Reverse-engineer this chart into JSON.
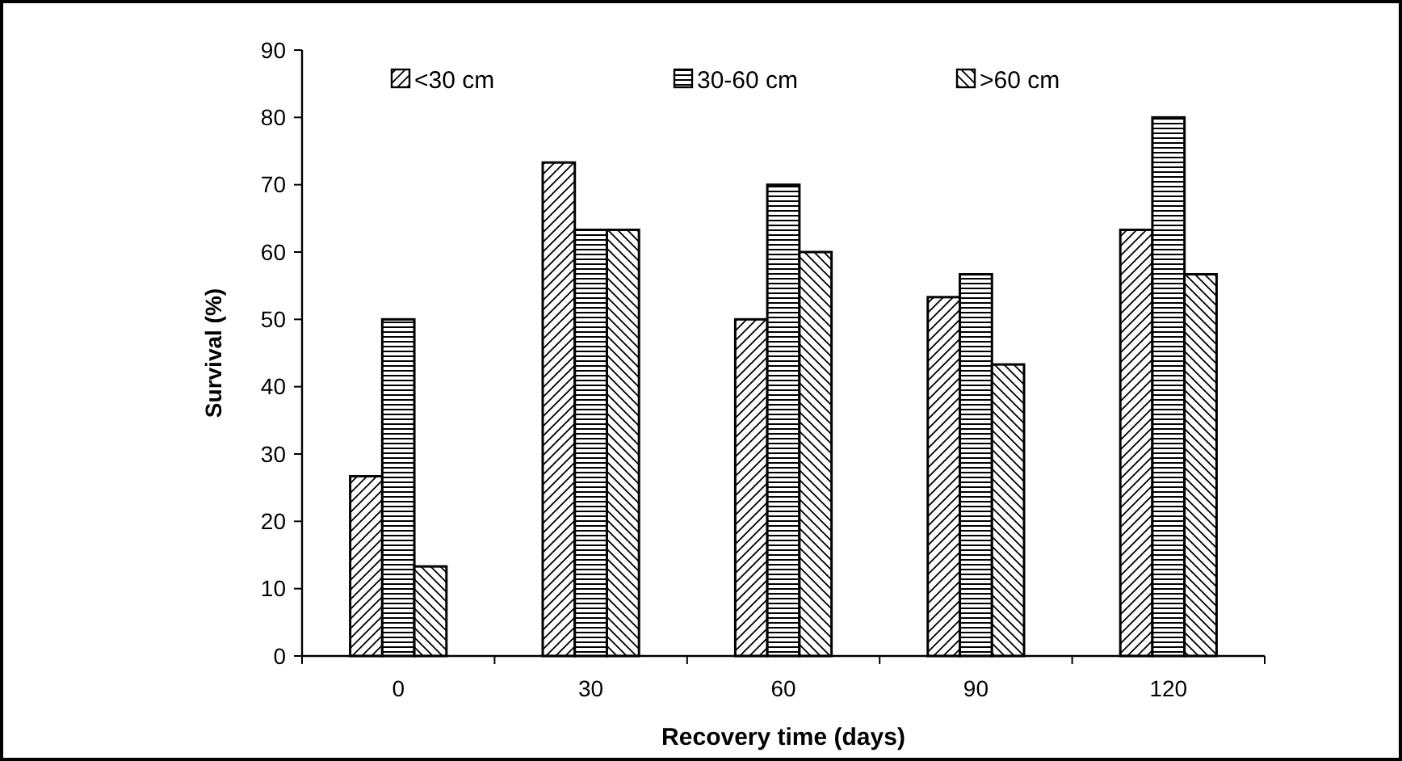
{
  "chart_data": {
    "type": "bar",
    "xlabel": "Recovery time (days)",
    "ylabel": "Survival (%)",
    "categories": [
      "0",
      "30",
      "60",
      "90",
      "120"
    ],
    "series": [
      {
        "name": "<30 cm",
        "color": "#000000",
        "values": [
          26.7,
          73.3,
          50,
          53.3,
          63.3
        ]
      },
      {
        "name": "30-60 cm",
        "color": "#000000",
        "values": [
          50,
          63.3,
          70,
          56.7,
          80
        ]
      },
      {
        "name": ">60 cm",
        "color": "#000000",
        "values": [
          13.3,
          63.3,
          60,
          43.3,
          56.7
        ]
      }
    ],
    "ylim": [
      0,
      90
    ],
    "yticks": [
      0,
      10,
      20,
      30,
      40,
      50,
      60,
      70,
      80,
      90
    ],
    "grid": false,
    "legend": "top"
  }
}
